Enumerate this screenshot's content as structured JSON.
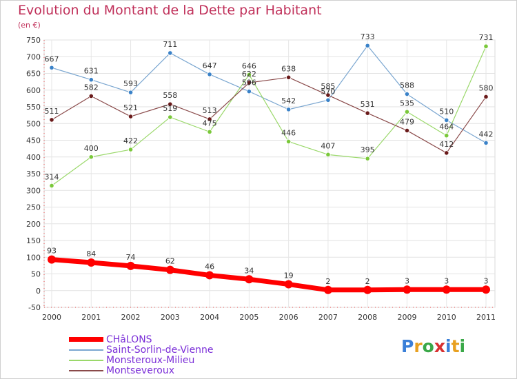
{
  "header": {
    "title": "Evolution du Montant de la Dette par Habitant",
    "unit": "(en €)"
  },
  "logo": {
    "text": "Proxiti",
    "colors": [
      "#3a7fd8",
      "#e8a020",
      "#3aa848",
      "#d83030",
      "#3a7fd8",
      "#e8a020",
      "#3aa848"
    ]
  },
  "chart_data": {
    "type": "line",
    "title": "Evolution du Montant de la Dette par Habitant",
    "ylabel": "(en €)",
    "ylim": [
      -50,
      750
    ],
    "ytick_step": 50,
    "grid": true,
    "legend_position": "bottom-left",
    "categories": [
      "2000",
      "2001",
      "2002",
      "2003",
      "2004",
      "2005",
      "2006",
      "2007",
      "2008",
      "2009",
      "2010",
      "2011"
    ],
    "series": [
      {
        "name": "CHâLONS",
        "color": "#ff0000",
        "width": 7,
        "values": [
          93,
          84,
          74,
          62,
          46,
          34,
          19,
          2,
          2,
          3,
          3,
          3
        ]
      },
      {
        "name": "Saint-Sorlin-de-Vienne",
        "color": "#7aa6d0",
        "marker": "#3a82c8",
        "width": 1.2,
        "values": [
          667,
          631,
          593,
          711,
          647,
          596,
          542,
          570,
          733,
          588,
          510,
          442
        ]
      },
      {
        "name": "Monsteroux-Milieu",
        "color": "#9ad86a",
        "marker": "#7ac83a",
        "width": 1.2,
        "values": [
          314,
          400,
          422,
          519,
          475,
          646,
          446,
          407,
          395,
          535,
          464,
          731
        ]
      },
      {
        "name": "Montseveroux",
        "color": "#8a4a4a",
        "marker": "#6a1a1a",
        "width": 1.2,
        "values": [
          511,
          582,
          521,
          558,
          513,
          622,
          638,
          585,
          531,
          479,
          412,
          580
        ]
      }
    ]
  }
}
